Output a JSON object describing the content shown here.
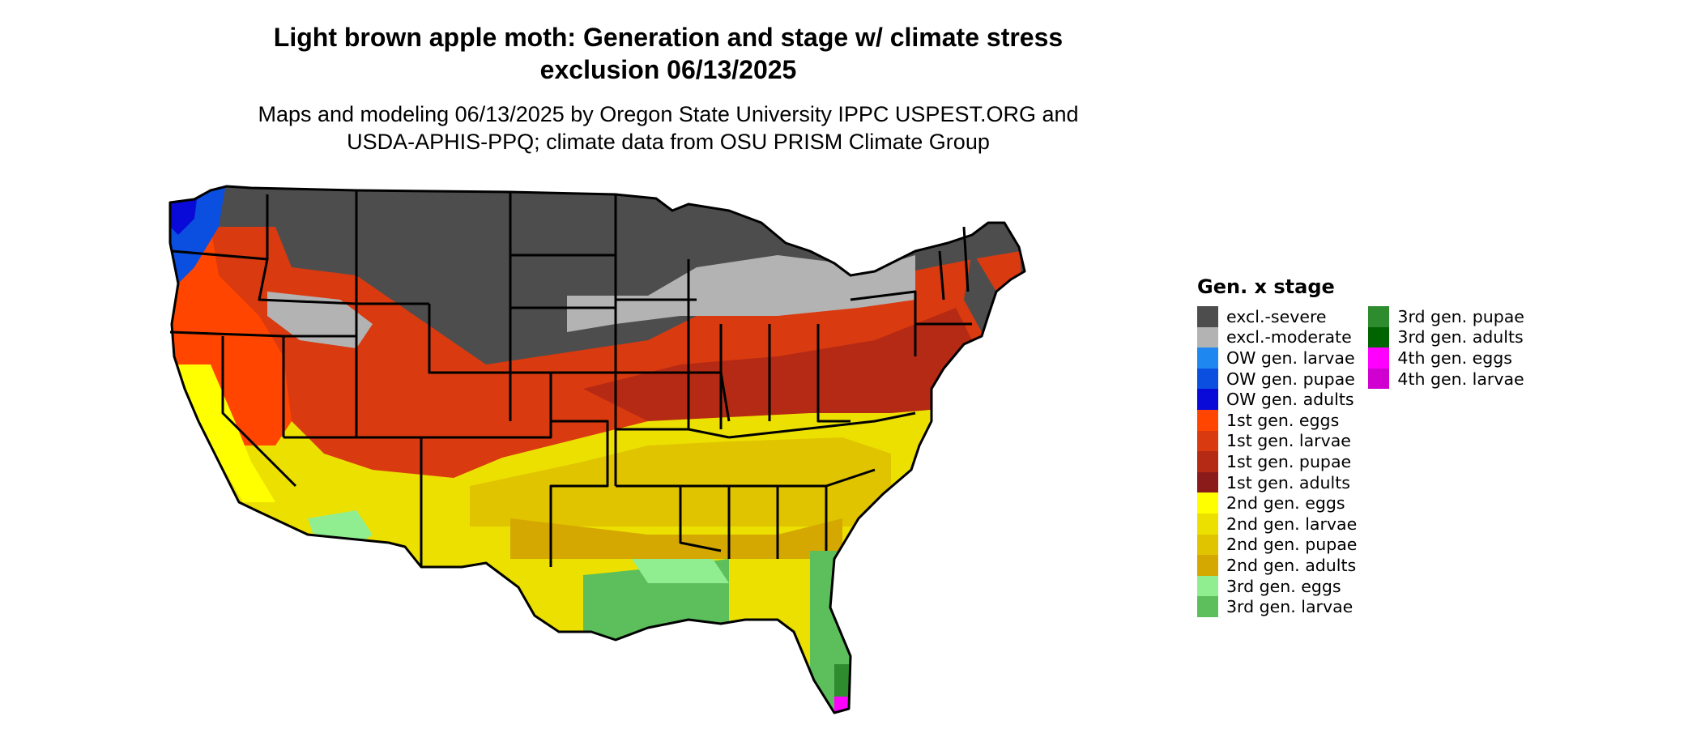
{
  "title": {
    "line1": "Light brown apple moth: Generation and stage w/ climate stress",
    "line2": "exclusion 06/13/2025"
  },
  "subtitle": {
    "line1": "Maps and modeling 06/13/2025 by Oregon State University IPPC USPEST.ORG and",
    "line2": "USDA-APHIS-PPQ; climate data from OSU PRISM Climate Group"
  },
  "legend": {
    "title": "Gen. x stage",
    "col1": [
      {
        "label": "excl.-severe",
        "color": "#4d4d4d"
      },
      {
        "label": "excl.-moderate",
        "color": "#b3b3b3"
      },
      {
        "label": "OW gen. larvae",
        "color": "#1e88f0"
      },
      {
        "label": "OW gen. pupae",
        "color": "#0a4fe0"
      },
      {
        "label": "OW gen. adults",
        "color": "#0a0ad8"
      },
      {
        "label": "1st gen. eggs",
        "color": "#ff4500"
      },
      {
        "label": "1st gen. larvae",
        "color": "#d93a10"
      },
      {
        "label": "1st gen. pupae",
        "color": "#b52a14"
      },
      {
        "label": "1st gen. adults",
        "color": "#8b1a1a"
      },
      {
        "label": "2nd gen. eggs",
        "color": "#ffff00"
      },
      {
        "label": "2nd gen. larvae",
        "color": "#ece000"
      },
      {
        "label": "2nd gen. pupae",
        "color": "#e0c400"
      },
      {
        "label": "2nd gen. adults",
        "color": "#d4a800"
      },
      {
        "label": "3rd gen. eggs",
        "color": "#90ee90"
      },
      {
        "label": "3rd gen. larvae",
        "color": "#5cbf5c"
      }
    ],
    "col2": [
      {
        "label": "3rd gen. pupae",
        "color": "#2e8b2e"
      },
      {
        "label": "3rd gen. adults",
        "color": "#006400"
      },
      {
        "label": "4th gen. eggs",
        "color": "#ff00ff"
      },
      {
        "label": "4th gen. larvae",
        "color": "#d000d0"
      }
    ]
  }
}
